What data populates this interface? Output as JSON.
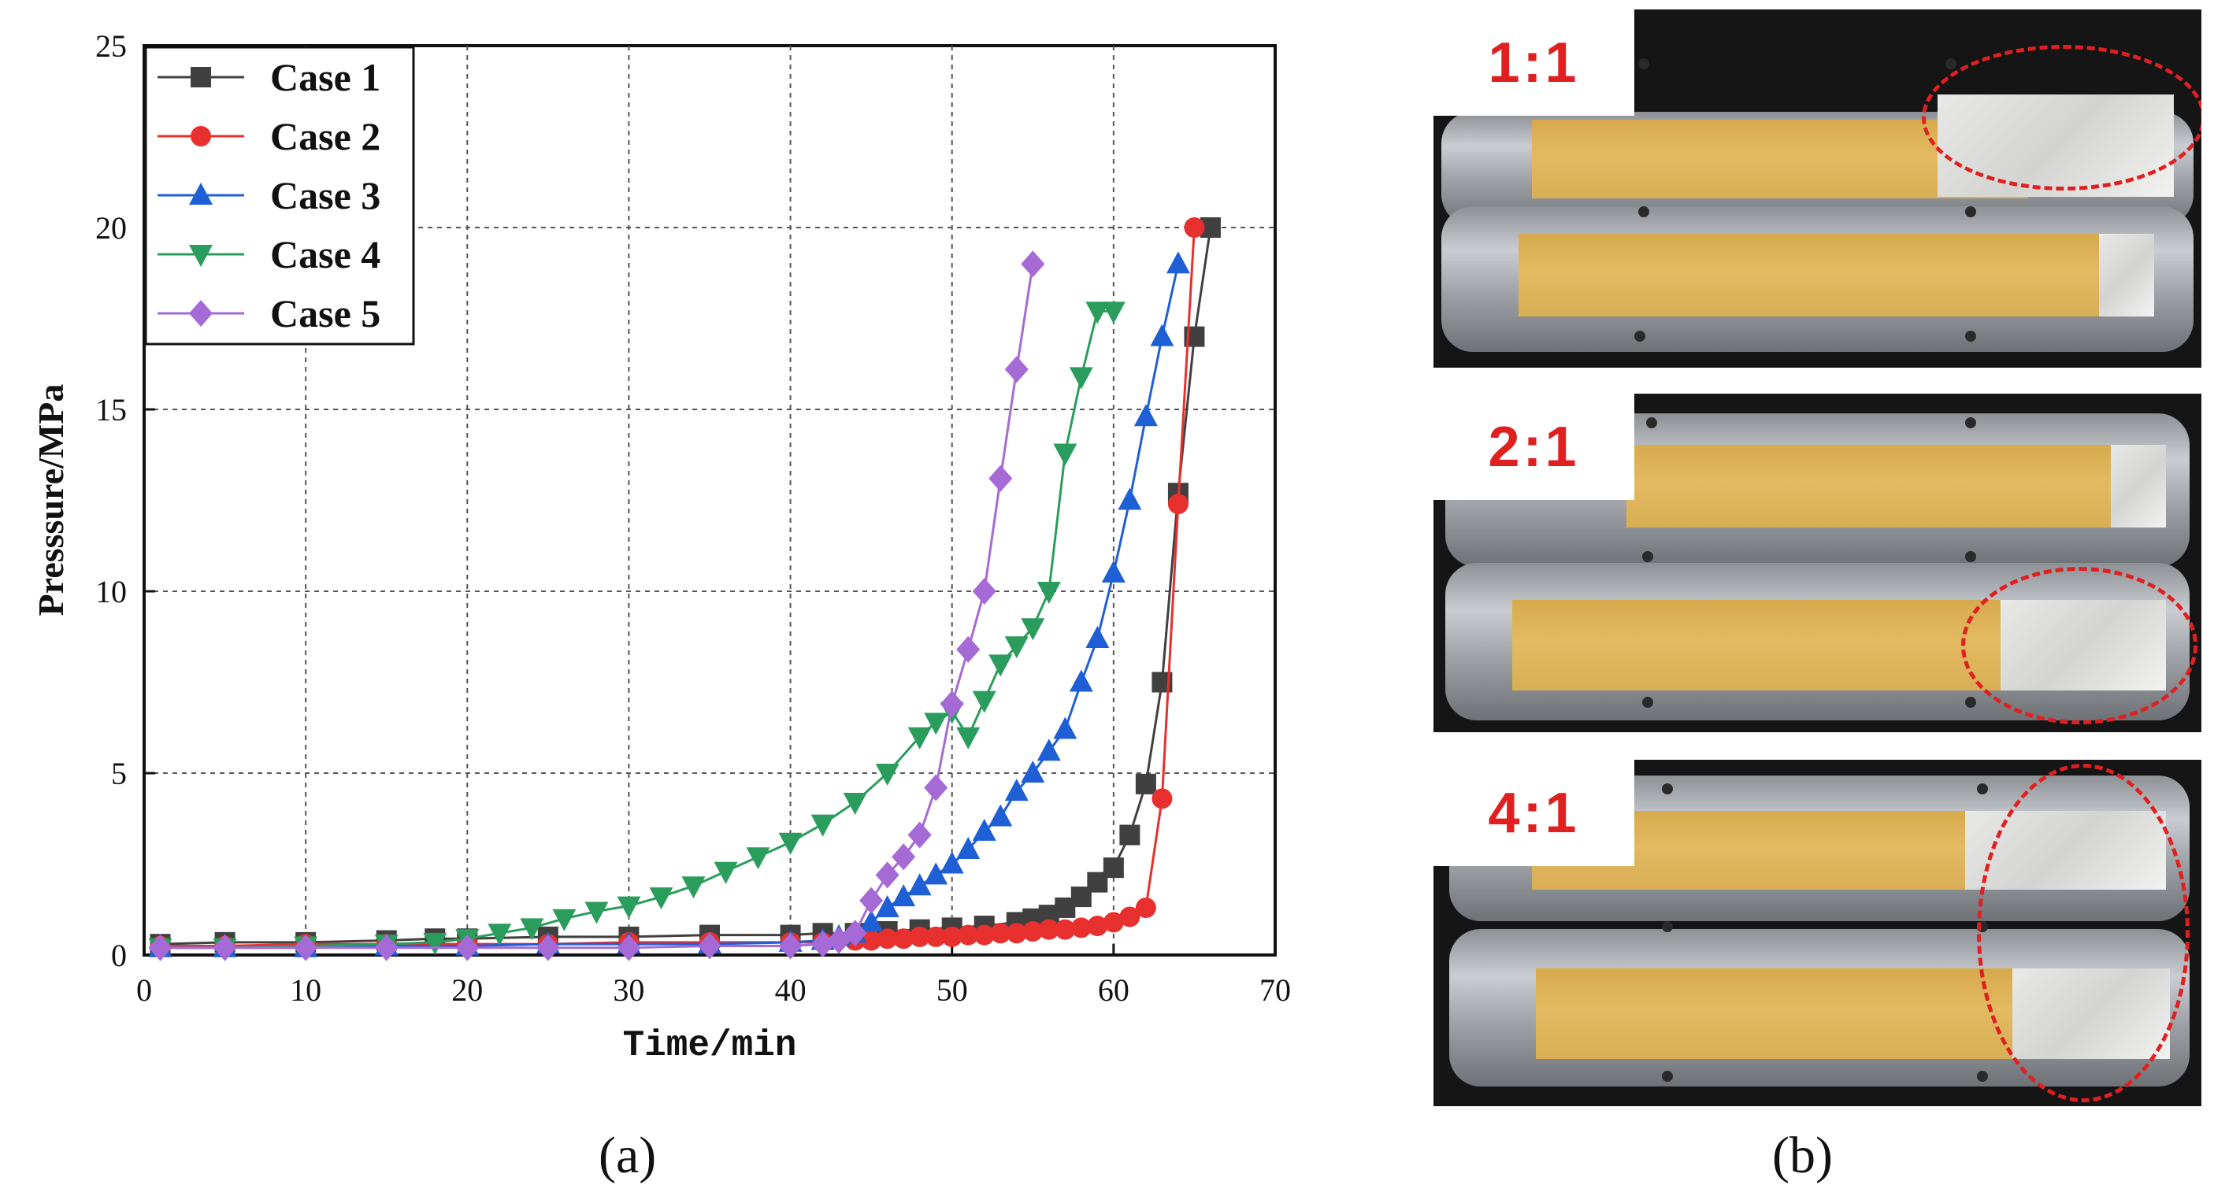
{
  "chart_data": {
    "type": "line",
    "title": "",
    "xlabel": "Time/min",
    "ylabel": "Presssure/MPa",
    "xlim": [
      0,
      70
    ],
    "ylim": [
      0,
      25
    ],
    "xticks": [
      0,
      10,
      20,
      30,
      40,
      50,
      60,
      70
    ],
    "yticks": [
      0,
      5,
      10,
      15,
      20,
      25
    ],
    "grid": true,
    "legend_position": "top-left",
    "series": [
      {
        "name": "Case 1",
        "color": "#404040",
        "marker": "square",
        "x": [
          1,
          5,
          10,
          15,
          18,
          20,
          25,
          30,
          35,
          40,
          42,
          44,
          46,
          48,
          50,
          52,
          54,
          55,
          56,
          57,
          58,
          59,
          60,
          61,
          62,
          63,
          64,
          65,
          66
        ],
        "y": [
          0.3,
          0.35,
          0.35,
          0.4,
          0.45,
          0.45,
          0.5,
          0.5,
          0.55,
          0.55,
          0.6,
          0.6,
          0.65,
          0.7,
          0.75,
          0.8,
          0.9,
          1.0,
          1.1,
          1.3,
          1.6,
          2.0,
          2.4,
          3.3,
          4.7,
          7.5,
          12.7,
          17.0,
          20.0
        ]
      },
      {
        "name": "Case 2",
        "color": "#e8302e",
        "marker": "circle",
        "x": [
          1,
          5,
          10,
          15,
          20,
          25,
          30,
          35,
          40,
          42,
          44,
          45,
          46,
          47,
          48,
          49,
          50,
          51,
          52,
          53,
          54,
          55,
          56,
          57,
          58,
          59,
          60,
          61,
          62,
          63,
          64,
          65
        ],
        "y": [
          0.25,
          0.25,
          0.3,
          0.3,
          0.3,
          0.3,
          0.35,
          0.35,
          0.35,
          0.35,
          0.4,
          0.4,
          0.45,
          0.45,
          0.5,
          0.5,
          0.5,
          0.55,
          0.55,
          0.6,
          0.6,
          0.65,
          0.7,
          0.7,
          0.75,
          0.8,
          0.9,
          1.05,
          1.3,
          4.3,
          12.4,
          20.0
        ]
      },
      {
        "name": "Case 3",
        "color": "#1f5fd6",
        "marker": "triangle-up",
        "x": [
          1,
          5,
          10,
          15,
          20,
          25,
          30,
          35,
          40,
          42,
          43,
          44,
          45,
          46,
          47,
          48,
          49,
          50,
          51,
          52,
          53,
          54,
          55,
          56,
          57,
          58,
          59,
          60,
          61,
          62,
          63,
          64
        ],
        "y": [
          0.2,
          0.2,
          0.2,
          0.25,
          0.25,
          0.3,
          0.3,
          0.3,
          0.35,
          0.4,
          0.5,
          0.6,
          0.9,
          1.3,
          1.6,
          1.9,
          2.2,
          2.5,
          2.9,
          3.4,
          3.8,
          4.5,
          5.0,
          5.6,
          6.2,
          7.5,
          8.7,
          10.5,
          12.5,
          14.8,
          17.0,
          19.0
        ]
      },
      {
        "name": "Case 4",
        "color": "#2a9d5c",
        "marker": "triangle-down",
        "x": [
          1,
          5,
          10,
          15,
          18,
          20,
          22,
          24,
          26,
          28,
          30,
          32,
          34,
          36,
          38,
          40,
          42,
          44,
          46,
          48,
          49,
          50,
          51,
          52,
          53,
          54,
          55,
          56,
          57,
          58,
          59,
          60
        ],
        "y": [
          0.2,
          0.2,
          0.25,
          0.3,
          0.35,
          0.45,
          0.6,
          0.75,
          1.0,
          1.2,
          1.35,
          1.6,
          1.9,
          2.3,
          2.7,
          3.1,
          3.6,
          4.2,
          5.0,
          6.0,
          6.4,
          6.7,
          6.0,
          7.0,
          8.0,
          8.5,
          9.0,
          10.0,
          13.8,
          15.9,
          17.7,
          17.7
        ],
        "x_note": "",
        "_": ""
      },
      {
        "name": "Case 5",
        "color": "#a56ad6",
        "marker": "diamond",
        "x": [
          1,
          5,
          10,
          15,
          20,
          25,
          30,
          35,
          40,
          42,
          43,
          44,
          45,
          46,
          47,
          48,
          49,
          50,
          51,
          52,
          53,
          54,
          55
        ],
        "y": [
          0.2,
          0.2,
          0.2,
          0.2,
          0.2,
          0.2,
          0.2,
          0.25,
          0.25,
          0.3,
          0.4,
          0.6,
          1.5,
          2.2,
          2.7,
          3.3,
          4.6,
          6.9,
          8.4,
          10.0,
          13.1,
          16.1,
          19.0
        ]
      }
    ]
  },
  "panel_a_label": "(a)",
  "panel_b_label": "(b)",
  "photos": [
    {
      "label": "1:1"
    },
    {
      "label": "2:1"
    },
    {
      "label": "4:1"
    }
  ]
}
